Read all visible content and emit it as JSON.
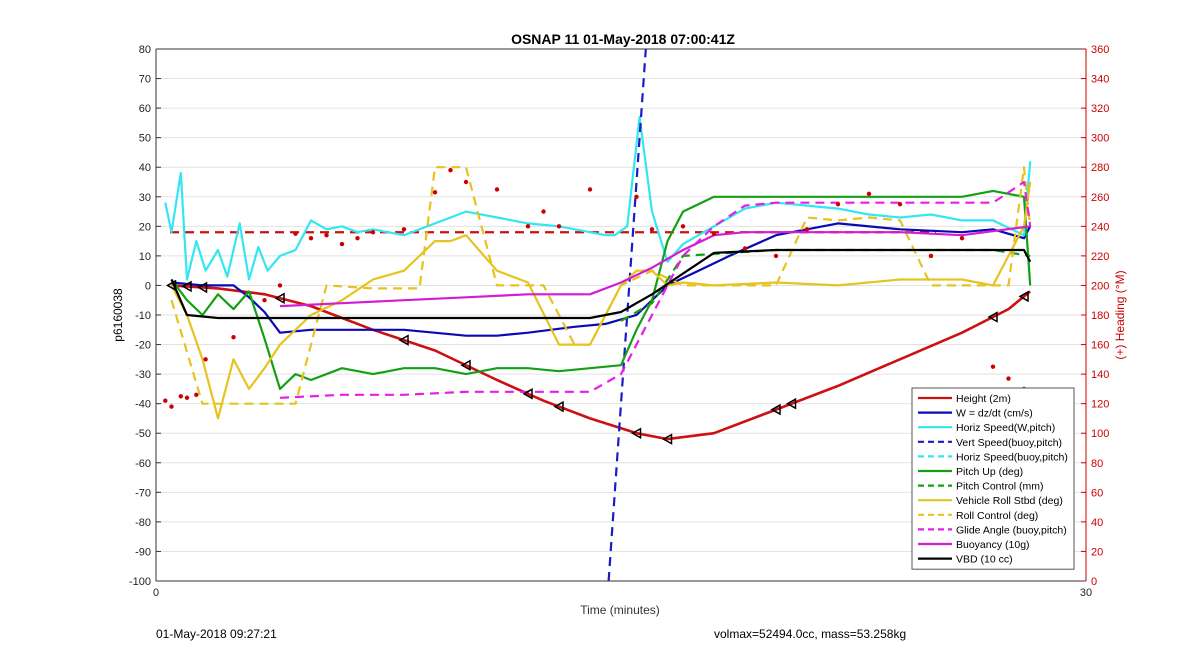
{
  "chart_data": {
    "type": "line",
    "title": "OSNAP 11 01-May-2018 07:00:41Z",
    "xlabel": "Time (minutes)",
    "ylabel": "p6160038",
    "y2label": "(+) Heading (°M)",
    "xlim": [
      0,
      30
    ],
    "ylim": [
      -100,
      80
    ],
    "y2lim": [
      0,
      360
    ],
    "x_ticks": [
      0,
      30
    ],
    "y_ticks": [
      80,
      70,
      60,
      50,
      40,
      30,
      20,
      10,
      0,
      -10,
      -20,
      -30,
      -40,
      -50,
      -60,
      -70,
      -80,
      -90,
      -100
    ],
    "y2_ticks": [
      360,
      340,
      320,
      300,
      280,
      260,
      240,
      220,
      200,
      180,
      160,
      140,
      120,
      100,
      80,
      60,
      40,
      20,
      0
    ],
    "grid": true,
    "legend_position": "lower-right",
    "colors": {
      "axis_right": "#cc0000",
      "height": "#cc1111",
      "w": "#0a0ab4",
      "horiz_speed": "#33e6f0",
      "vert_speed": "#1a1ac8",
      "pitch_up": "#14a014",
      "pitch_control": "#14a014",
      "roll": "#e6c31e",
      "roll_control": "#e6c31e",
      "glide": "#e61ee6",
      "buoyancy": "#d21ed2",
      "vbd": "#000000",
      "heading": "#cc0000"
    },
    "series": [
      {
        "name": "Height (2m)",
        "style": "solid",
        "color": "#cc1111",
        "x": [
          0.5,
          2,
          3.5,
          5,
          7,
          9,
          11,
          12.5,
          14,
          15.5,
          16.5,
          18,
          20,
          22,
          24,
          26,
          27.5,
          28.2
        ],
        "y": [
          0,
          -1,
          -3,
          -7,
          -15,
          -22,
          -32,
          -39,
          -45,
          -50,
          -52,
          -50,
          -42,
          -34,
          -25,
          -16,
          -8,
          -2
        ]
      },
      {
        "name": "W = dz/dt (cm/s)",
        "style": "solid",
        "color": "#0a0ab4",
        "x": [
          0.5,
          1.5,
          2.5,
          3,
          3.5,
          4,
          5,
          6,
          8,
          10,
          11,
          12,
          13.5,
          14.5,
          15.5,
          16.5,
          17.5,
          18.5,
          20,
          22,
          24,
          26,
          27,
          28,
          28.2
        ],
        "y": [
          1,
          0,
          0,
          -4,
          -9,
          -16,
          -15,
          -15,
          -15,
          -17,
          -17,
          -16,
          -14,
          -13,
          -10,
          0,
          5,
          10,
          17,
          21,
          19,
          18,
          19,
          16,
          20
        ]
      },
      {
        "name": "Horiz Speed(W,pitch)",
        "style": "solid",
        "color": "#33e6f0",
        "x": [
          0.3,
          0.5,
          0.8,
          1,
          1.3,
          1.6,
          2,
          2.3,
          2.7,
          3,
          3.3,
          3.6,
          4,
          4.5,
          5,
          5.5,
          6,
          6.5,
          7,
          8,
          9,
          10,
          11,
          12,
          13,
          14,
          14.5,
          14.8,
          15.2,
          15.6,
          16,
          16.5,
          17,
          18,
          19,
          20,
          21,
          22,
          23,
          24,
          25,
          26,
          27,
          28,
          28.2
        ],
        "y": [
          28,
          18,
          38,
          2,
          15,
          5,
          12,
          3,
          21,
          2,
          13,
          5,
          10,
          12,
          22,
          19,
          20,
          18,
          19,
          17,
          21,
          25,
          23,
          21,
          20,
          18,
          17,
          17,
          20,
          57,
          25,
          8,
          14,
          20,
          26,
          28,
          27,
          26,
          24,
          23,
          24,
          22,
          22,
          17,
          42
        ]
      },
      {
        "name": "Vert Speed(buoy,pitch)",
        "style": "dashed",
        "color": "#1a1ac8",
        "x": [
          14.6,
          15.8
        ],
        "y": [
          -100,
          80
        ]
      },
      {
        "name": "Horiz Speed(buoy,pitch)",
        "style": "dashed",
        "color": "#33e6f0",
        "x": [],
        "y": []
      },
      {
        "name": "Pitch Up (deg)",
        "style": "solid",
        "color": "#14a014",
        "x": [
          0.5,
          1,
          1.5,
          2,
          2.5,
          3,
          3.5,
          4,
          4.5,
          5,
          6,
          7,
          8,
          9,
          10,
          11,
          12,
          13,
          14,
          15,
          15.5,
          16,
          16.5,
          17,
          18,
          20,
          22,
          24,
          26,
          27,
          28,
          28.2
        ],
        "y": [
          2,
          -5,
          -10,
          -3,
          -8,
          -2,
          -18,
          -35,
          -30,
          -32,
          -28,
          -30,
          -28,
          -28,
          -30,
          -28,
          -28,
          -29,
          -28,
          -27,
          -15,
          -5,
          15,
          25,
          30,
          30,
          30,
          30,
          30,
          32,
          30,
          0
        ]
      },
      {
        "name": "Pitch Control (mm)",
        "style": "dashed",
        "color": "#14a014",
        "x": [
          15,
          16,
          17,
          20,
          24,
          27,
          28.2
        ],
        "y": [
          -12,
          -6,
          10,
          12,
          12,
          12,
          10
        ]
      },
      {
        "name": "Vehicle Roll Stbd (deg)",
        "style": "solid",
        "color": "#e6c31e",
        "x": [
          0.5,
          1,
          1.5,
          2,
          2.5,
          3,
          3.5,
          4,
          4.5,
          5,
          6,
          7,
          8,
          9,
          9.5,
          10,
          11,
          12,
          13,
          14,
          15,
          15.5,
          16,
          16.5,
          17,
          18,
          20,
          22,
          24,
          26,
          27,
          28,
          28.2
        ],
        "y": [
          0,
          -10,
          -25,
          -45,
          -25,
          -35,
          -28,
          -20,
          -15,
          -10,
          -5,
          2,
          5,
          15,
          15,
          17,
          5,
          1,
          -20,
          -20,
          0,
          5,
          5,
          0,
          1,
          0,
          1,
          0,
          2,
          2,
          0,
          20,
          35
        ]
      },
      {
        "name": "Roll Control (deg)",
        "style": "dashed",
        "color": "#e6c31e",
        "x": [
          0.5,
          1.5,
          3,
          4.5,
          5.5,
          7,
          8.5,
          9,
          10,
          11,
          11.5,
          12.5,
          13.5,
          14,
          15,
          16,
          17,
          19,
          20,
          21,
          22,
          23,
          24,
          25,
          26,
          27,
          27.5,
          28,
          28.2
        ],
        "y": [
          -5,
          -40,
          -40,
          -40,
          0,
          -1,
          -1,
          40,
          40,
          0,
          0,
          0,
          -20,
          -20,
          0,
          5,
          0,
          0,
          0,
          23,
          22,
          23,
          22,
          0,
          0,
          0,
          0,
          40,
          20
        ]
      },
      {
        "name": "Glide Angle (buoy,pitch)",
        "style": "dashed",
        "color": "#e61ee6",
        "x": [
          4,
          6,
          8,
          10,
          12,
          14,
          15,
          16,
          16.5,
          17,
          18,
          19,
          20,
          22,
          24,
          26,
          27,
          28,
          28.2
        ],
        "y": [
          -38,
          -37,
          -37,
          -36,
          -36,
          -36,
          -30,
          -10,
          0,
          10,
          20,
          27,
          28,
          28,
          28,
          28,
          28,
          35,
          20
        ]
      },
      {
        "name": "Buoyancy (10g)",
        "style": "solid",
        "color": "#d21ed2",
        "x": [
          4,
          6,
          8,
          10,
          12,
          14,
          15,
          16,
          17,
          18,
          19,
          20,
          22,
          24,
          26,
          28.2
        ],
        "y": [
          -7,
          -6,
          -5,
          -4,
          -3,
          -3,
          1,
          6,
          12,
          17,
          18,
          18,
          18,
          18,
          17,
          20
        ]
      },
      {
        "name": "VBD (10 cc)",
        "style": "solid",
        "color": "#000000",
        "x": [
          0.5,
          1,
          2,
          4,
          6,
          8,
          10,
          12,
          14,
          15,
          16,
          17,
          18,
          20,
          22,
          24,
          26,
          28,
          28.2
        ],
        "y": [
          2,
          -10,
          -11,
          -11,
          -11,
          -11,
          -11,
          -11,
          -11,
          -9,
          -3,
          4,
          11,
          12,
          12,
          12,
          12,
          12,
          8
        ]
      }
    ],
    "markers": {
      "color": "#000000",
      "x": [
        0.5,
        1,
        1.5,
        4,
        8,
        10,
        12,
        13,
        15.5,
        16.5,
        20,
        20.5,
        27,
        28
      ]
    },
    "heading_reference": {
      "color": "#cc1111",
      "style": "dashed",
      "y2": 236
    },
    "heading_points": {
      "color": "#cc0000",
      "x": [
        0.3,
        0.5,
        0.8,
        1,
        1.3,
        1.6,
        2.5,
        3.5,
        4,
        4.5,
        5,
        5.5,
        6,
        6.5,
        7,
        8,
        9,
        9.5,
        10,
        11,
        12,
        12.5,
        13,
        14,
        15.5,
        16,
        17,
        18,
        19,
        20,
        21,
        22,
        23,
        24,
        25,
        26,
        27,
        27.5,
        28
      ],
      "y2": [
        122,
        118,
        125,
        124,
        126,
        150,
        165,
        190,
        200,
        235,
        232,
        234,
        228,
        232,
        236,
        238,
        263,
        278,
        270,
        265,
        240,
        250,
        240,
        265,
        260,
        238,
        240,
        235,
        225,
        220,
        238,
        255,
        262,
        255,
        220,
        232,
        145,
        137,
        130
      ]
    },
    "legend": [
      "Height (2m)",
      "W = dz/dt (cm/s)",
      "Horiz Speed(W,pitch)",
      "Vert Speed(buoy,pitch)",
      "Horiz Speed(buoy,pitch)",
      "Pitch Up (deg)",
      "Pitch Control (mm)",
      "Vehicle Roll Stbd (deg)",
      "Roll Control (deg)",
      "Glide Angle (buoy,pitch)",
      "Buoyancy (10g)",
      "VBD (10 cc)"
    ]
  },
  "footer": {
    "left": "01-May-2018 09:27:21",
    "right": "volmax=52494.0cc, mass=53.258kg"
  }
}
